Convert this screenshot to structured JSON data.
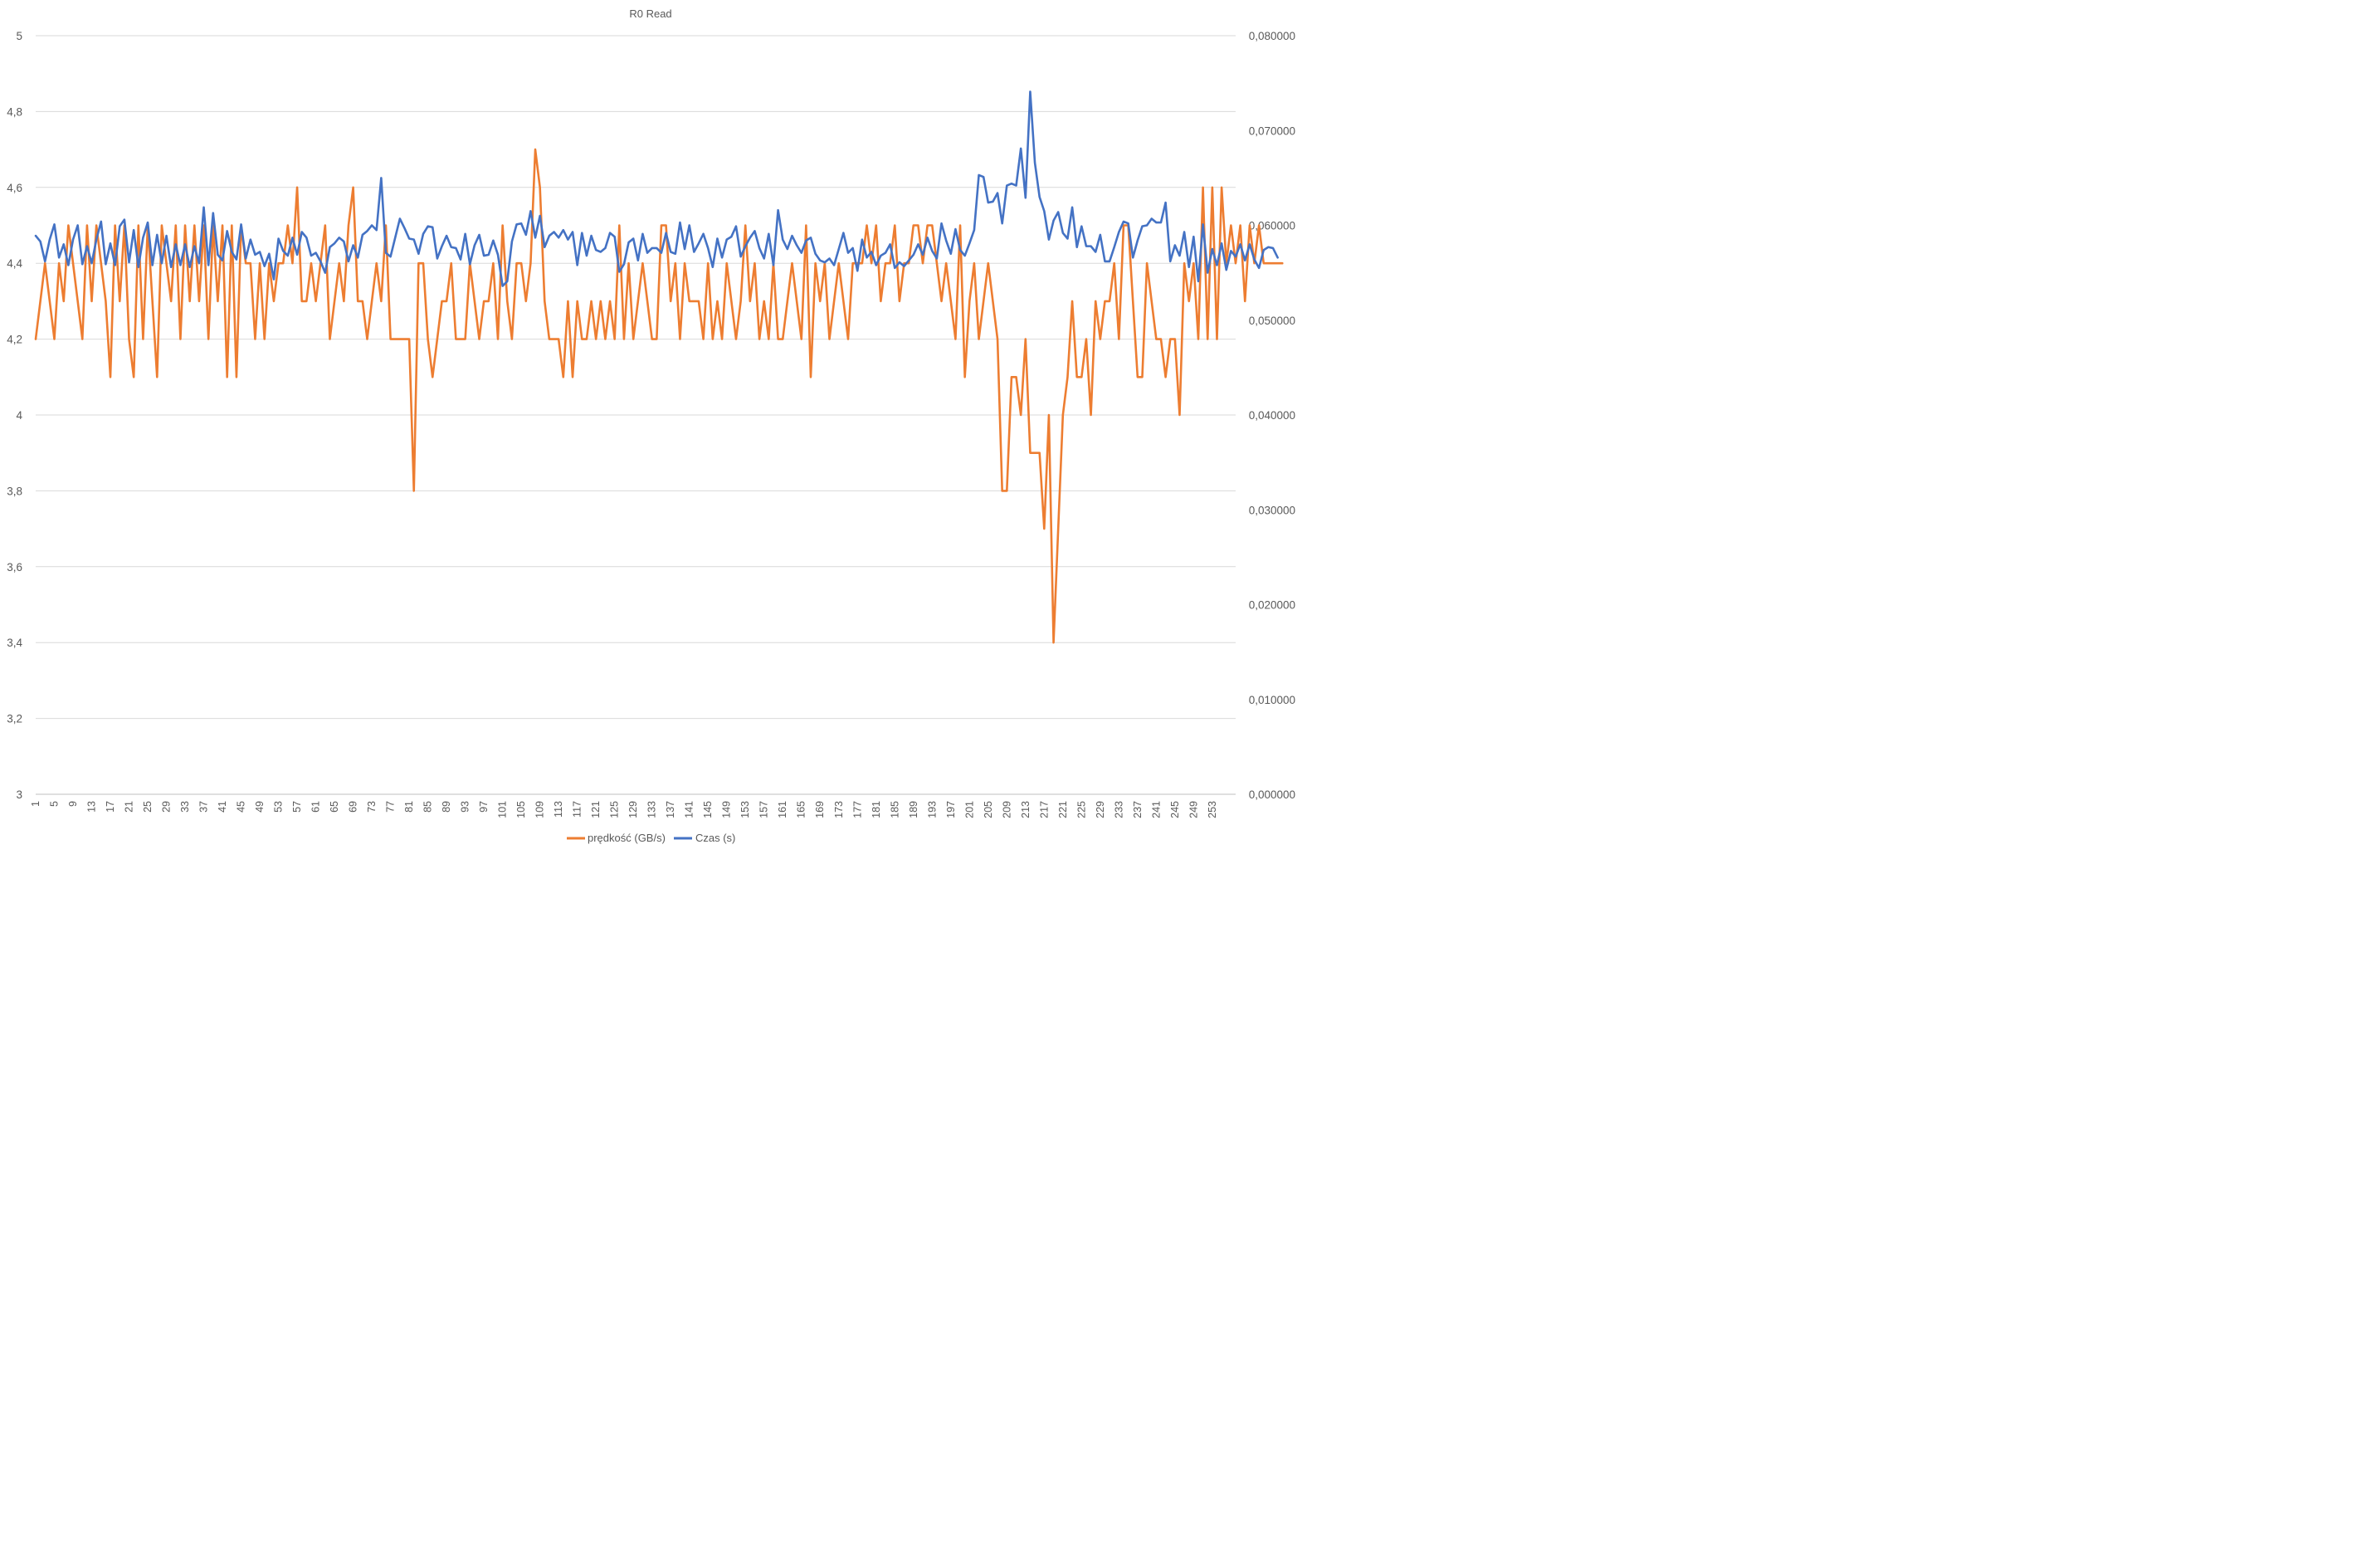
{
  "chart_data": {
    "type": "line",
    "title": "R0 Read",
    "x": {
      "start": 1,
      "end": 258,
      "tick_labels": [
        "1",
        "5",
        "9",
        "13",
        "17",
        "21",
        "25",
        "29",
        "33",
        "37",
        "41",
        "45",
        "49",
        "53",
        "57",
        "61",
        "65",
        "69",
        "73",
        "77",
        "81",
        "85",
        "89",
        "93",
        "97",
        "101",
        "105",
        "109",
        "113",
        "117",
        "121",
        "125",
        "129",
        "133",
        "137",
        "141",
        "145",
        "149",
        "153",
        "157",
        "161",
        "165",
        "169",
        "173",
        "177",
        "181",
        "185",
        "189",
        "193",
        "197",
        "201",
        "205",
        "209",
        "213",
        "217",
        "221",
        "225",
        "229",
        "233",
        "237",
        "241",
        "245",
        "249",
        "253"
      ]
    },
    "y_left": {
      "ylim": [
        3,
        5
      ],
      "tick_labels": [
        "3",
        "3,2",
        "3,4",
        "3,6",
        "3,8",
        "4",
        "4,2",
        "4,4",
        "4,6",
        "4,8",
        "5"
      ]
    },
    "y_right": {
      "ylim": [
        0,
        0.08
      ],
      "tick_labels": [
        "0,000000",
        "0,010000",
        "0,020000",
        "0,030000",
        "0,040000",
        "0,050000",
        "0,060000",
        "0,070000",
        "0,080000"
      ]
    },
    "grid": true,
    "legend_position": "bottom",
    "series": [
      {
        "name": "prędkość (GB/s)",
        "axis": "left",
        "color": "#ED7D31",
        "values": [
          4.2,
          4.3,
          4.4,
          4.3,
          4.2,
          4.4,
          4.3,
          4.5,
          4.4,
          4.3,
          4.2,
          4.5,
          4.3,
          4.5,
          4.4,
          4.3,
          4.1,
          4.5,
          4.3,
          4.5,
          4.2,
          4.1,
          4.5,
          4.2,
          4.5,
          4.3,
          4.1,
          4.5,
          4.4,
          4.3,
          4.5,
          4.2,
          4.5,
          4.3,
          4.5,
          4.3,
          4.5,
          4.2,
          4.5,
          4.3,
          4.5,
          4.1,
          4.5,
          4.1,
          4.5,
          4.4,
          4.4,
          4.2,
          4.4,
          4.2,
          4.4,
          4.3,
          4.4,
          4.4,
          4.5,
          4.4,
          4.6,
          4.3,
          4.3,
          4.4,
          4.3,
          4.4,
          4.5,
          4.2,
          4.3,
          4.4,
          4.3,
          4.5,
          4.6,
          4.3,
          4.3,
          4.2,
          4.3,
          4.4,
          4.3,
          4.5,
          4.2,
          4.2,
          4.2,
          4.2,
          4.2,
          3.8,
          4.4,
          4.4,
          4.2,
          4.1,
          4.2,
          4.3,
          4.3,
          4.4,
          4.2,
          4.2,
          4.2,
          4.4,
          4.3,
          4.2,
          4.3,
          4.3,
          4.4,
          4.2,
          4.5,
          4.3,
          4.2,
          4.4,
          4.4,
          4.3,
          4.4,
          4.7,
          4.6,
          4.3,
          4.2,
          4.2,
          4.2,
          4.1,
          4.3,
          4.1,
          4.3,
          4.2,
          4.2,
          4.3,
          4.2,
          4.3,
          4.2,
          4.3,
          4.2,
          4.5,
          4.2,
          4.4,
          4.2,
          4.3,
          4.4,
          4.3,
          4.2,
          4.2,
          4.5,
          4.5,
          4.3,
          4.4,
          4.2,
          4.4,
          4.3,
          4.3,
          4.3,
          4.2,
          4.4,
          4.2,
          4.3,
          4.2,
          4.4,
          4.3,
          4.2,
          4.3,
          4.5,
          4.3,
          4.4,
          4.2,
          4.3,
          4.2,
          4.4,
          4.2,
          4.2,
          4.3,
          4.4,
          4.3,
          4.2,
          4.5,
          4.1,
          4.4,
          4.3,
          4.4,
          4.2,
          4.3,
          4.4,
          4.3,
          4.2,
          4.4,
          4.4,
          4.4,
          4.5,
          4.4,
          4.5,
          4.3,
          4.4,
          4.4,
          4.5,
          4.3,
          4.4,
          4.4,
          4.5,
          4.5,
          4.4,
          4.5,
          4.5,
          4.4,
          4.3,
          4.4,
          4.3,
          4.2,
          4.5,
          4.1,
          4.3,
          4.4,
          4.2,
          4.3,
          4.4,
          4.3,
          4.2,
          3.8,
          3.8,
          4.1,
          4.1,
          4.0,
          4.2,
          3.9,
          3.9,
          3.9,
          3.7,
          4.0,
          3.4,
          3.7,
          4.0,
          4.1,
          4.3,
          4.1,
          4.1,
          4.2,
          4.0,
          4.3,
          4.2,
          4.3,
          4.3,
          4.4,
          4.2,
          4.5,
          4.5,
          4.3,
          4.1,
          4.1,
          4.4,
          4.3,
          4.2,
          4.2,
          4.1,
          4.2,
          4.2,
          4.0,
          4.4,
          4.3,
          4.4,
          4.2,
          4.6,
          4.2,
          4.6,
          4.2,
          4.6,
          4.4,
          4.5,
          4.4,
          4.5,
          4.3,
          4.5,
          4.4,
          4.5,
          4.4,
          4.4,
          4.4,
          4.4,
          4.4
        ]
      },
      {
        "name": "Czas (s)",
        "axis": "right",
        "color": "#4472C4",
        "values": [
          0.0589,
          0.0583,
          0.0562,
          0.0585,
          0.0601,
          0.0566,
          0.058,
          0.0558,
          0.0585,
          0.06,
          0.0559,
          0.0578,
          0.056,
          0.0585,
          0.0604,
          0.0559,
          0.0581,
          0.0558,
          0.0599,
          0.0606,
          0.0561,
          0.0595,
          0.0556,
          0.0587,
          0.0603,
          0.0558,
          0.059,
          0.056,
          0.0589,
          0.0556,
          0.058,
          0.0558,
          0.058,
          0.0556,
          0.0578,
          0.056,
          0.0619,
          0.0558,
          0.0613,
          0.0569,
          0.0563,
          0.0594,
          0.0572,
          0.0564,
          0.0601,
          0.0565,
          0.0585,
          0.0569,
          0.0572,
          0.0557,
          0.057,
          0.0543,
          0.0586,
          0.0573,
          0.0568,
          0.0587,
          0.0569,
          0.0593,
          0.0587,
          0.0568,
          0.0571,
          0.0562,
          0.055,
          0.0577,
          0.0581,
          0.0587,
          0.0583,
          0.0562,
          0.0579,
          0.0566,
          0.059,
          0.0594,
          0.06,
          0.0595,
          0.065,
          0.0571,
          0.0567,
          0.0587,
          0.0607,
          0.0597,
          0.0586,
          0.0585,
          0.057,
          0.0591,
          0.0599,
          0.0598,
          0.0565,
          0.0578,
          0.0589,
          0.0577,
          0.0576,
          0.0564,
          0.0591,
          0.0559,
          0.0579,
          0.059,
          0.0568,
          0.0569,
          0.0584,
          0.0569,
          0.0536,
          0.0541,
          0.0583,
          0.0601,
          0.0602,
          0.059,
          0.0615,
          0.0587,
          0.061,
          0.0577,
          0.0589,
          0.0593,
          0.0587,
          0.0595,
          0.0585,
          0.0593,
          0.0558,
          0.0592,
          0.0568,
          0.0589,
          0.0574,
          0.0572,
          0.0576,
          0.0592,
          0.0588,
          0.0551,
          0.0559,
          0.0582,
          0.0586,
          0.0563,
          0.0591,
          0.0571,
          0.0576,
          0.0576,
          0.0571,
          0.0592,
          0.0572,
          0.057,
          0.0603,
          0.0575,
          0.06,
          0.0572,
          0.0581,
          0.0591,
          0.0576,
          0.0556,
          0.0586,
          0.0566,
          0.0585,
          0.0588,
          0.0599,
          0.0567,
          0.0578,
          0.0587,
          0.0594,
          0.0576,
          0.0565,
          0.0591,
          0.0558,
          0.0616,
          0.0585,
          0.0575,
          0.0589,
          0.0579,
          0.0571,
          0.0584,
          0.0587,
          0.057,
          0.0563,
          0.0561,
          0.0565,
          0.0558,
          0.0575,
          0.0592,
          0.0571,
          0.0576,
          0.0552,
          0.0585,
          0.0566,
          0.0572,
          0.0558,
          0.0568,
          0.0571,
          0.058,
          0.0555,
          0.0561,
          0.0557,
          0.0563,
          0.0569,
          0.058,
          0.0569,
          0.0587,
          0.0573,
          0.0565,
          0.0602,
          0.0584,
          0.057,
          0.0596,
          0.0574,
          0.0568,
          0.0581,
          0.0595,
          0.0653,
          0.0651,
          0.0624,
          0.0625,
          0.0634,
          0.0602,
          0.0642,
          0.0644,
          0.0642,
          0.0681,
          0.0629,
          0.0741,
          0.0666,
          0.063,
          0.0615,
          0.0585,
          0.0605,
          0.0614,
          0.0592,
          0.0586,
          0.0619,
          0.0577,
          0.0599,
          0.0578,
          0.0578,
          0.0572,
          0.059,
          0.0562,
          0.0562,
          0.0577,
          0.0593,
          0.0604,
          0.0602,
          0.0566,
          0.0584,
          0.0599,
          0.06,
          0.0607,
          0.0603,
          0.0603,
          0.0624,
          0.0562,
          0.0579,
          0.0568,
          0.0593,
          0.0556,
          0.0588,
          0.0541,
          0.0601,
          0.055,
          0.0575,
          0.0558,
          0.0581,
          0.0553,
          0.0573,
          0.0567,
          0.058,
          0.0563,
          0.058,
          0.0564,
          0.0555,
          0.0574,
          0.0577,
          0.0576,
          0.0566
        ]
      }
    ]
  },
  "legend": {
    "items": [
      {
        "label": "prędkość (GB/s)",
        "color": "#ED7D31"
      },
      {
        "label": "Czas (s)",
        "color": "#4472C4"
      }
    ]
  }
}
